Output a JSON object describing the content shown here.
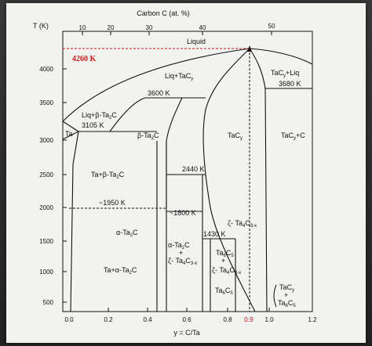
{
  "top_axis": {
    "title": "Carbon C (at. %)",
    "ticks": [
      "10",
      "20",
      "30",
      "40",
      "50"
    ]
  },
  "y_axis": {
    "title": "T (K)",
    "ticks": [
      "4000",
      "3500",
      "3000",
      "2500",
      "2000",
      "1500",
      "1000",
      "500"
    ]
  },
  "x_axis": {
    "title": "y = C/Ta",
    "ticks": [
      "0.0",
      "0.2",
      "0.4",
      "0.6",
      "0.8",
      "1.0",
      "1.2"
    ],
    "highlight_tick": "0.9"
  },
  "highlight_temperature": "4260 K",
  "labels": {
    "liquid": "Liquid",
    "liq_tac": "Liq+TaC",
    "liq_tac_sub": "y",
    "tac_liq": "TaC",
    "tac_liq_sub": "y",
    "tac_liq_rest": "+Liq",
    "t3680": "3680 K",
    "t3600": "3600 K",
    "liq_beta": "Liq+β-Ta",
    "liq_beta_sub": "2",
    "liq_beta_rest": "C",
    "t3105": "3105 K",
    "ta": "Ta",
    "beta_ta2c": "β-Ta",
    "beta_ta2c_sub": "2",
    "beta_ta2c_rest": "C",
    "tac": "TaC",
    "tac_sub": "y",
    "tac_c": "TaC",
    "tac_c_sub": "y",
    "tac_c_rest": "+C",
    "ta_beta": "Ta+β-Ta",
    "ta_beta_sub": "2",
    "ta_beta_rest": "C",
    "t2440": "2440 K",
    "t1950": "~1950 K",
    "t1800": "~1800 K",
    "zeta_ta4c3": "ζ- Ta",
    "zeta_ta4c3_sub": "4",
    "zeta_ta4c3_rest": "C",
    "zeta_ta4c3_sub2": "3-x",
    "alpha_ta2c": "α-Ta",
    "alpha_ta2c_sub": "2",
    "alpha_ta2c_rest": "C",
    "t1430": "1430 K",
    "ta_alpha": "Ta+α-Ta",
    "ta_alpha_sub": "2",
    "ta_alpha_rest": "C",
    "alpha_zeta_top": "α-Ta",
    "alpha_zeta_top_sub": "2",
    "alpha_zeta_top_rest": "C",
    "alpha_zeta_plus": "+",
    "alpha_zeta_bottom": "ζ- Ta",
    "alpha_zeta_bottom_sub": "4",
    "alpha_zeta_bottom_rest": "C",
    "alpha_zeta_bottom_sub2": "3-x",
    "ta6c5": "Ta",
    "ta6c5_sub": "6",
    "ta6c5_rest": "C",
    "ta6c5_sub2": "5",
    "ta6c5_plus": "+",
    "zeta2": "ζ- Ta",
    "zeta2_sub": "4",
    "zeta2_rest": "C",
    "zeta2_sub2": "3-x",
    "ta6c5b": "Ta",
    "ta6c5b_sub": "6",
    "ta6c5b_rest": "C",
    "ta6c5b_sub2": "5",
    "tacy_ta6c5_top": "TaC",
    "tacy_ta6c5_top_sub": "y",
    "tacy_ta6c5_plus": "+",
    "tacy_ta6c5_bottom": "Ta",
    "tacy_ta6c5_bottom_sub": "6",
    "tacy_ta6c5_bottom_rest": "C",
    "tacy_ta6c5_bottom_sub2": "5"
  },
  "colors": {
    "highlight": "#c41a1a",
    "ink": "#111111",
    "paper": "#f2f2ef"
  }
}
